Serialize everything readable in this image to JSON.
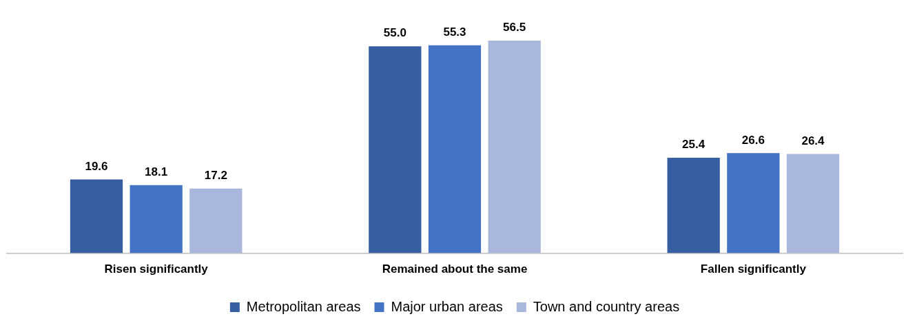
{
  "chart_data": {
    "type": "bar",
    "categories": [
      "Risen significantly",
      "Remained about the same",
      "Fallen significantly"
    ],
    "series": [
      {
        "name": "Metropolitan areas",
        "color": "#375ea1",
        "values": [
          19.6,
          55.0,
          25.4
        ],
        "value_labels": [
          "19.6",
          "55.0",
          "25.4"
        ]
      },
      {
        "name": "Major urban areas",
        "color": "#4472c4",
        "values": [
          18.1,
          55.3,
          26.6
        ],
        "value_labels": [
          "18.1",
          "55.3",
          "26.6"
        ]
      },
      {
        "name": "Town and country areas",
        "color": "#a9b7dc",
        "values": [
          17.2,
          56.5,
          26.4
        ],
        "value_labels": [
          "17.2",
          "56.5",
          "26.4"
        ]
      }
    ],
    "legend": "bottom",
    "grid": false
  }
}
